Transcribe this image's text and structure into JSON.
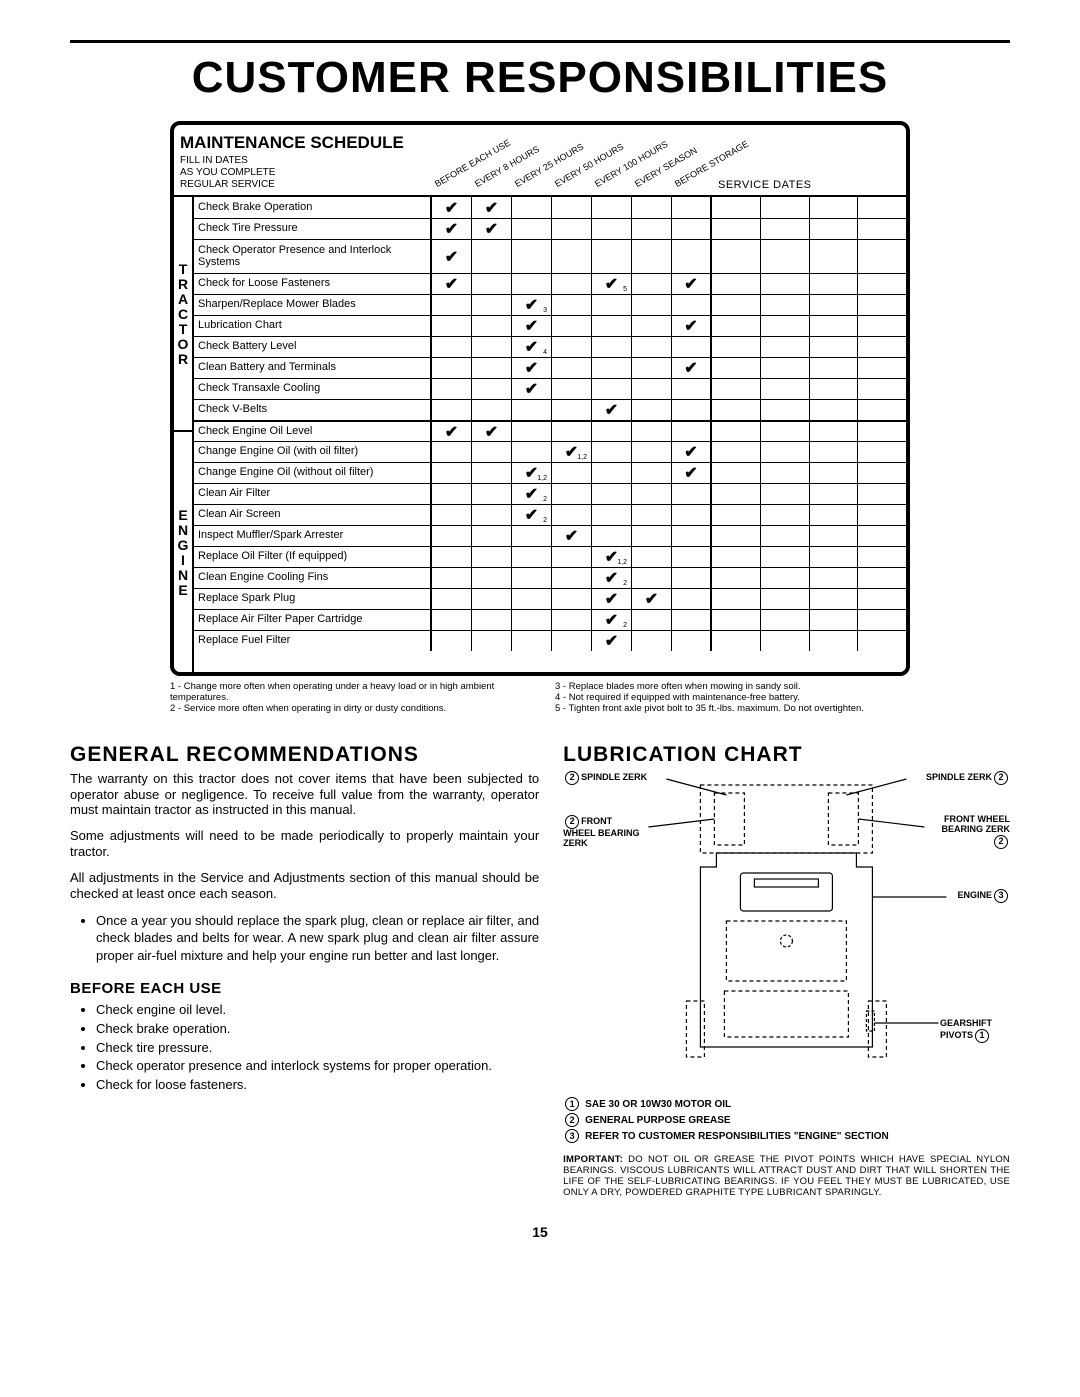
{
  "title": "CUSTOMER RESPONSIBILITIES",
  "page_number": "15",
  "schedule": {
    "heading": "MAINTENANCE SCHEDULE",
    "sub1": "FILL IN DATES",
    "sub2": "AS YOU COMPLETE",
    "sub3": "REGULAR SERVICE",
    "intervals": [
      "BEFORE EACH USE",
      "EVERY 8 HOURS",
      "EVERY 25 HOURS",
      "EVERY 50 HOURS",
      "EVERY 100 HOURS",
      "EVERY SEASON",
      "BEFORE STORAGE"
    ],
    "service_dates": "SERVICE DATES",
    "groups": [
      {
        "label": "TRACTOR",
        "rows": [
          {
            "label": "Check Brake Operation",
            "checks": [
              "✔",
              "✔",
              "",
              "",
              "",
              "",
              ""
            ]
          },
          {
            "label": "Check Tire Pressure",
            "checks": [
              "✔",
              "✔",
              "",
              "",
              "",
              "",
              ""
            ]
          },
          {
            "label": "Check Operator Presence and Interlock Systems",
            "checks": [
              "✔",
              "",
              "",
              "",
              "",
              "",
              ""
            ],
            "tall": true
          },
          {
            "label": "Check for Loose Fasteners",
            "checks": [
              "✔",
              "",
              "",
              "",
              "✔",
              "",
              "✔"
            ],
            "subs": [
              "",
              "",
              "",
              "",
              "5",
              "",
              ""
            ]
          },
          {
            "label": "Sharpen/Replace Mower Blades",
            "checks": [
              "",
              "",
              "✔",
              "",
              "",
              "",
              ""
            ],
            "subs": [
              "",
              "",
              "3",
              "",
              "",
              "",
              ""
            ]
          },
          {
            "label": "Lubrication Chart",
            "checks": [
              "",
              "",
              "✔",
              "",
              "",
              "",
              "✔"
            ]
          },
          {
            "label": "Check Battery Level",
            "checks": [
              "",
              "",
              "✔",
              "",
              "",
              "",
              ""
            ],
            "subs": [
              "",
              "",
              "4",
              "",
              "",
              "",
              ""
            ]
          },
          {
            "label": "Clean Battery and Terminals",
            "checks": [
              "",
              "",
              "✔",
              "",
              "",
              "",
              "✔"
            ]
          },
          {
            "label": "Check Transaxle Cooling",
            "checks": [
              "",
              "",
              "✔",
              "",
              "",
              "",
              ""
            ]
          },
          {
            "label": "Check V-Belts",
            "checks": [
              "",
              "",
              "",
              "",
              "✔",
              "",
              ""
            ]
          }
        ]
      },
      {
        "label": "ENGINE",
        "rows": [
          {
            "label": "Check Engine Oil Level",
            "checks": [
              "✔",
              "✔",
              "",
              "",
              "",
              "",
              ""
            ]
          },
          {
            "label": "Change Engine Oil (with oil filter)",
            "checks": [
              "",
              "",
              "",
              "✔",
              "",
              "",
              "✔"
            ],
            "subs": [
              "",
              "",
              "",
              "1,2",
              "",
              "",
              ""
            ]
          },
          {
            "label": "Change Engine Oil (without oil filter)",
            "checks": [
              "",
              "",
              "✔",
              "",
              "",
              "",
              "✔"
            ],
            "subs": [
              "",
              "",
              "1,2",
              "",
              "",
              "",
              ""
            ]
          },
          {
            "label": "Clean Air Filter",
            "checks": [
              "",
              "",
              "✔",
              "",
              "",
              "",
              ""
            ],
            "subs": [
              "",
              "",
              "2",
              "",
              "",
              "",
              ""
            ]
          },
          {
            "label": "Clean Air Screen",
            "checks": [
              "",
              "",
              "✔",
              "",
              "",
              "",
              ""
            ],
            "subs": [
              "",
              "",
              "2",
              "",
              "",
              "",
              ""
            ]
          },
          {
            "label": "Inspect Muffler/Spark Arrester",
            "checks": [
              "",
              "",
              "",
              "✔",
              "",
              "",
              ""
            ]
          },
          {
            "label": "Replace Oil Filter (If equipped)",
            "checks": [
              "",
              "",
              "",
              "",
              "✔",
              "",
              ""
            ],
            "subs": [
              "",
              "",
              "",
              "",
              "1,2",
              "",
              ""
            ]
          },
          {
            "label": "Clean Engine Cooling Fins",
            "checks": [
              "",
              "",
              "",
              "",
              "✔",
              "",
              ""
            ],
            "subs": [
              "",
              "",
              "",
              "",
              "2",
              "",
              ""
            ]
          },
          {
            "label": "Replace Spark Plug",
            "checks": [
              "",
              "",
              "",
              "",
              "✔",
              "✔",
              ""
            ]
          },
          {
            "label": "Replace Air Filter Paper Cartridge",
            "checks": [
              "",
              "",
              "",
              "",
              "✔",
              "",
              ""
            ],
            "subs": [
              "",
              "",
              "",
              "",
              "2",
              "",
              ""
            ]
          },
          {
            "label": "Replace Fuel Filter",
            "checks": [
              "",
              "",
              "",
              "",
              "✔",
              "",
              ""
            ]
          }
        ]
      }
    ],
    "footnotes_left": [
      "1 - Change more often when operating under a heavy load or in high ambient temperatures.",
      "2 - Service more often when operating in dirty or dusty conditions."
    ],
    "footnotes_right": [
      "3 - Replace blades more often when mowing in sandy soil.",
      "4 - Not required if equipped with maintenance-free battery.",
      "5 - Tighten front axle pivot bolt to 35 ft.-lbs. maximum. Do not overtighten."
    ]
  },
  "general": {
    "heading": "GENERAL RECOMMENDATIONS",
    "p1": "The warranty on this tractor does not cover items that have been subjected to operator abuse or negligence. To receive full value from the warranty, operator must maintain tractor as instructed in this manual.",
    "p2": "Some adjustments will need to be made periodically to properly maintain your tractor.",
    "p3": "All adjustments in the Service and Adjustments section of this manual should be checked at least once each season.",
    "bullet": "Once a year you should replace the spark plug, clean or replace air filter, and check blades and belts for wear. A new spark plug and clean air filter assure proper air-fuel mixture and help your engine run better and last longer.",
    "before_heading": "BEFORE EACH USE",
    "before": [
      "Check engine oil level.",
      "Check brake operation.",
      "Check tire pressure.",
      "Check operator presence and interlock systems for proper operation.",
      "Check for loose fasteners."
    ]
  },
  "lube": {
    "heading": "LUBRICATION CHART",
    "labels": {
      "spindle_l": "SPINDLE ZERK",
      "spindle_r": "SPINDLE ZERK",
      "wheel_l": "FRONT WHEEL BEARING ZERK",
      "wheel_r": "FRONT WHEEL BEARING ZERK",
      "engine": "ENGINE",
      "gearshift": "GEARSHIFT PIVOTS"
    },
    "legend": [
      {
        "n": "1",
        "t": "SAE 30 OR 10W30 MOTOR OIL"
      },
      {
        "n": "2",
        "t": "GENERAL PURPOSE GREASE"
      },
      {
        "n": "3",
        "t": "REFER TO CUSTOMER RESPONSIBILITIES \"ENGINE\" SECTION"
      }
    ],
    "important": "IMPORTANT: DO NOT OIL OR GREASE THE PIVOT POINTS WHICH HAVE SPECIAL NYLON BEARINGS. VISCOUS LUBRICANTS WILL ATTRACT DUST AND DIRT THAT WILL SHORTEN THE LIFE OF THE SELF-LUBRICATING BEARINGS. IF YOU FEEL THEY MUST BE LUBRICATED, USE ONLY A DRY, POWDERED GRAPHITE TYPE LUBRICANT SPARINGLY."
  }
}
